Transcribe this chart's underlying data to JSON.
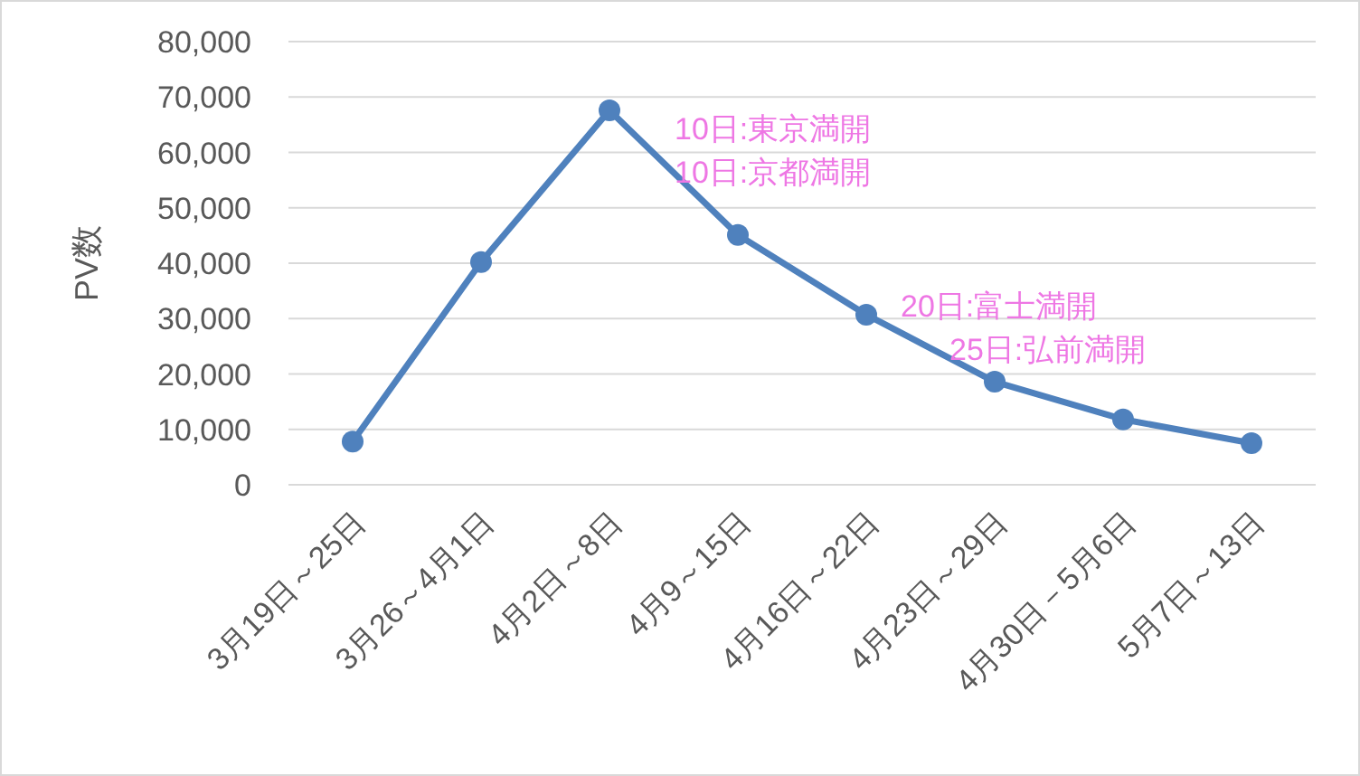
{
  "chart_data": {
    "type": "line",
    "ylabel": "PV数",
    "categories": [
      "3月19日～25日",
      "3月26～4月1日",
      "4月2日～8日",
      "4月9～15日",
      "4月16日～22日",
      "4月23日～29日",
      "4月30日－5月6日",
      "5月7日～13日"
    ],
    "series": [
      {
        "color": "#4f81bd",
        "values": [
          7800,
          40200,
          67600,
          45100,
          30700,
          18600,
          11800,
          7500
        ]
      }
    ],
    "ylim": [
      0,
      80000
    ],
    "yticks": [
      {
        "value": 0,
        "label": "0"
      },
      {
        "value": 10000,
        "label": "10,000"
      },
      {
        "value": 20000,
        "label": "20,000"
      },
      {
        "value": 30000,
        "label": "30,000"
      },
      {
        "value": 40000,
        "label": "40,000"
      },
      {
        "value": 50000,
        "label": "50,000"
      },
      {
        "value": 60000,
        "label": "60,000"
      },
      {
        "value": 70000,
        "label": "70,000"
      },
      {
        "value": 80000,
        "label": "80,000"
      }
    ],
    "grid": "y",
    "marker": "circle",
    "line_style": "solid",
    "annotations": [
      "10日:東京満開",
      "10日:京都満開",
      "20日:富士満開",
      "25日:弘前満開"
    ]
  }
}
